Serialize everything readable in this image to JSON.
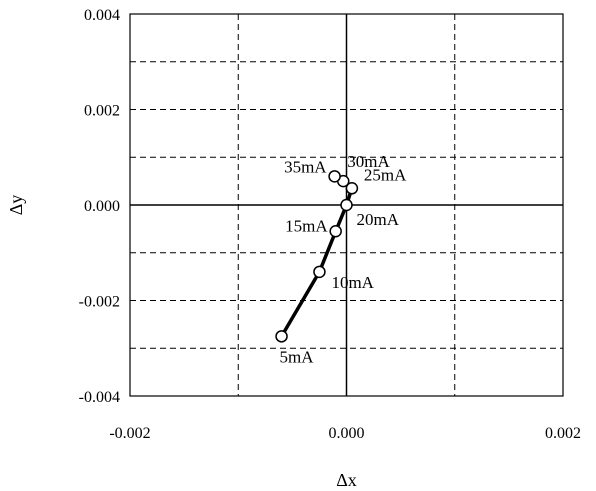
{
  "chart_data": {
    "type": "line",
    "title": "",
    "xlabel": "Δx",
    "ylabel": "Δy",
    "xlim": [
      -0.002,
      0.002
    ],
    "ylim": [
      -0.004,
      0.004
    ],
    "x_ticks": [
      "-0.002",
      "0.000",
      "0.002"
    ],
    "y_ticks": [
      "0.004",
      "0.002",
      "0.000",
      "-0.002",
      "-0.004"
    ],
    "grid": "dashed, minor every 0.001 on both axes",
    "series": [
      {
        "points": [
          {
            "label": "5mA",
            "x": -0.0006,
            "y": -0.00275
          },
          {
            "label": "10mA",
            "x": -0.00025,
            "y": -0.0014
          },
          {
            "label": "15mA",
            "x": -0.0001,
            "y": -0.00055
          },
          {
            "label": "20mA",
            "x": 0.0,
            "y": 0.0
          },
          {
            "label": "25mA",
            "x": 5e-05,
            "y": 0.00035
          },
          {
            "label": "30mA",
            "x": -3e-05,
            "y": 0.0005
          },
          {
            "label": "35mA",
            "x": -0.00011,
            "y": 0.0006
          }
        ]
      }
    ]
  }
}
